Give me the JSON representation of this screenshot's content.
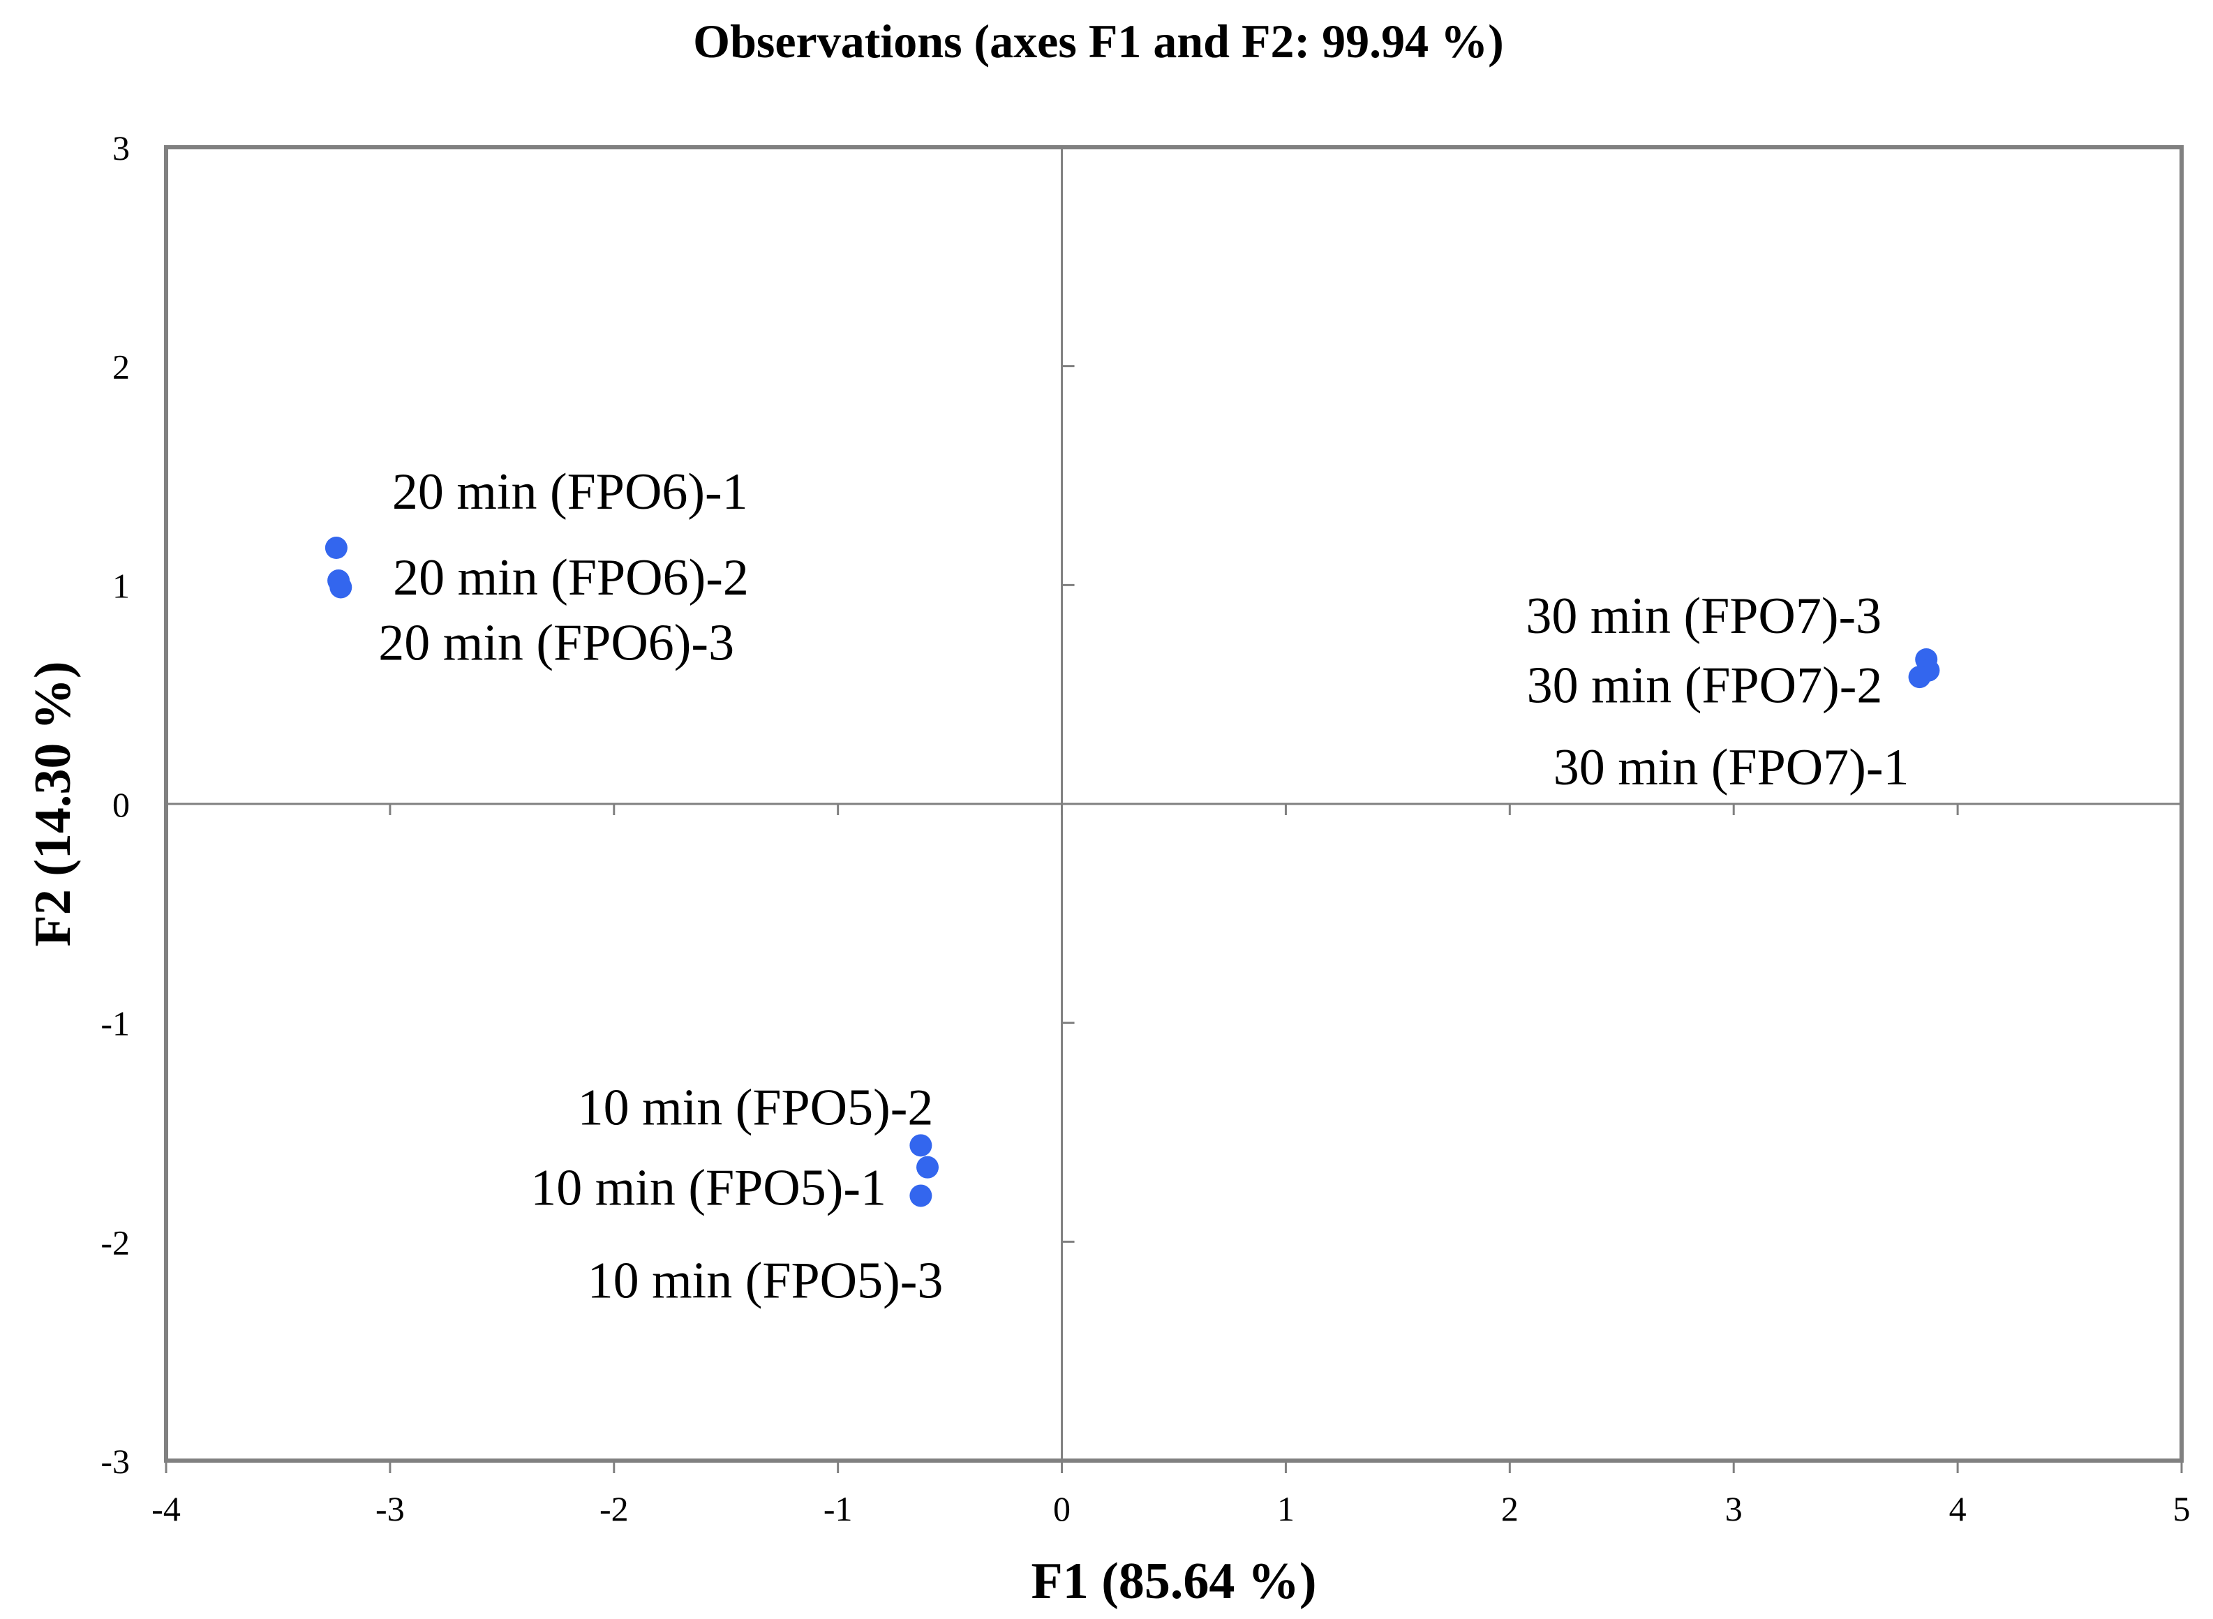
{
  "chart_data": {
    "type": "scatter",
    "title": "Observations (axes F1 and F2: 99.94 %)",
    "xlabel": "F1 (85.64 %)",
    "ylabel": "F2 (14.30 %)",
    "xlim": [
      -4,
      5
    ],
    "ylim": [
      -3,
      3
    ],
    "xticks": [
      -4,
      -3,
      -2,
      -1,
      0,
      1,
      2,
      3,
      4,
      5
    ],
    "yticks": [
      -3,
      -2,
      -1,
      0,
      1,
      2,
      3
    ],
    "grid": false,
    "zero_lines": true,
    "marker_color": "#3366ee",
    "points": [
      {
        "label": "20 min (FPO6)-1",
        "x": -3.24,
        "y": 1.17
      },
      {
        "label": "20 min (FPO6)-2",
        "x": -3.23,
        "y": 1.02
      },
      {
        "label": "20 min (FPO6)-3",
        "x": -3.22,
        "y": 0.99
      },
      {
        "label": "30 min (FPO7)-3",
        "x": 3.86,
        "y": 0.66
      },
      {
        "label": "30 min (FPO7)-2",
        "x": 3.87,
        "y": 0.61
      },
      {
        "label": "30 min (FPO7)-1",
        "x": 3.83,
        "y": 0.58
      },
      {
        "label": "10 min (FPO5)-2",
        "x": -0.63,
        "y": -1.56
      },
      {
        "label": "10 min (FPO5)-1",
        "x": -0.6,
        "y": -1.66
      },
      {
        "label": "10 min (FPO5)-3",
        "x": -0.63,
        "y": -1.79
      }
    ]
  }
}
